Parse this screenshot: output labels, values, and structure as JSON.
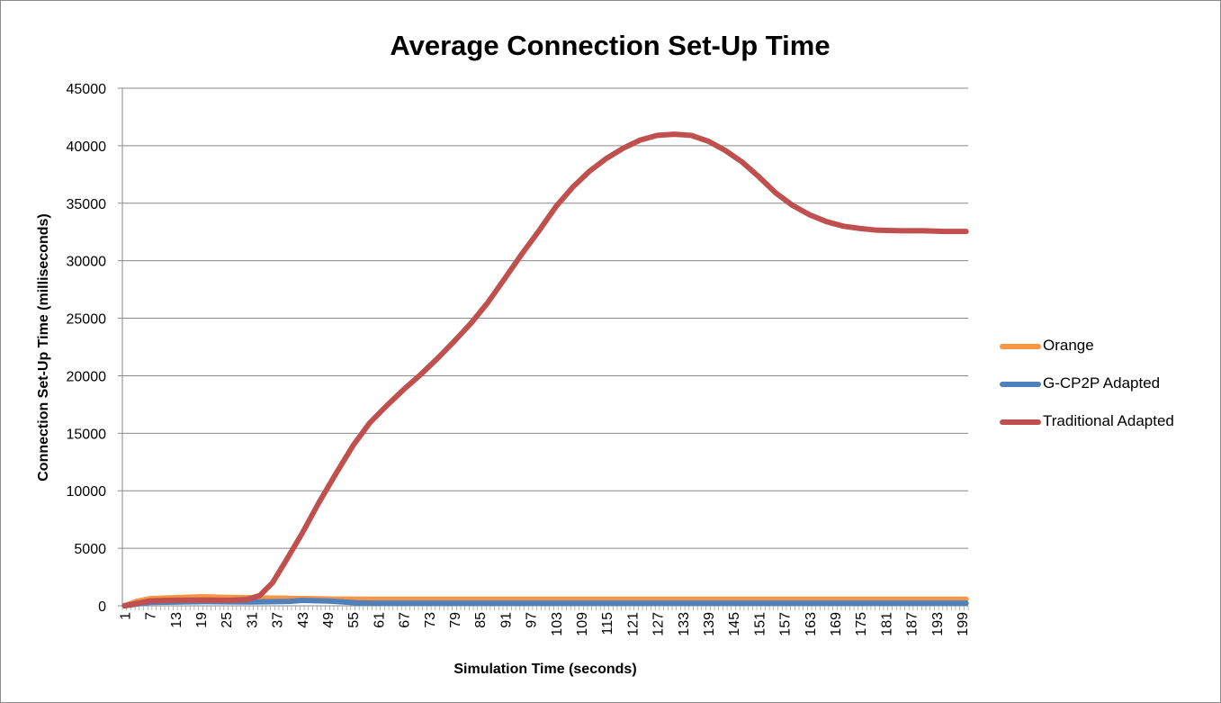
{
  "chart_data": {
    "type": "line",
    "title": "Average Connection Set-Up Time",
    "xlabel": "Simulation Time (seconds)",
    "ylabel": "Connection Set-Up Time (milliseconds)",
    "ylim": [
      0,
      45000
    ],
    "yticks": [
      0,
      5000,
      10000,
      15000,
      20000,
      25000,
      30000,
      35000,
      40000,
      45000
    ],
    "x_start": 1,
    "x_end": 200,
    "x_tick_labels": [
      1,
      7,
      13,
      19,
      25,
      31,
      37,
      43,
      49,
      55,
      61,
      67,
      73,
      79,
      85,
      91,
      97,
      103,
      109,
      115,
      121,
      127,
      133,
      139,
      145,
      151,
      157,
      163,
      169,
      175,
      181,
      187,
      193,
      199
    ],
    "grid": true,
    "legend_position": "right",
    "series": [
      {
        "name": "Orange",
        "color": "#f79646",
        "points": [
          [
            1,
            0
          ],
          [
            4,
            400
          ],
          [
            7,
            620
          ],
          [
            12,
            700
          ],
          [
            19,
            780
          ],
          [
            26,
            720
          ],
          [
            31,
            700
          ],
          [
            40,
            640
          ],
          [
            50,
            590
          ],
          [
            60,
            560
          ],
          [
            80,
            560
          ],
          [
            120,
            560
          ],
          [
            160,
            560
          ],
          [
            200,
            560
          ]
        ]
      },
      {
        "name": "G-CP2P Adapted",
        "color": "#4f81bd",
        "points": [
          [
            1,
            0
          ],
          [
            7,
            300
          ],
          [
            20,
            360
          ],
          [
            31,
            330
          ],
          [
            40,
            380
          ],
          [
            43,
            470
          ],
          [
            50,
            400
          ],
          [
            56,
            250
          ],
          [
            60,
            230
          ],
          [
            100,
            230
          ],
          [
            150,
            230
          ],
          [
            200,
            230
          ]
        ]
      },
      {
        "name": "Traditional Adapted",
        "color": "#c0504d",
        "points": [
          [
            1,
            0
          ],
          [
            7,
            420
          ],
          [
            12,
            480
          ],
          [
            20,
            500
          ],
          [
            26,
            480
          ],
          [
            30,
            550
          ],
          [
            33,
            900
          ],
          [
            36,
            2000
          ],
          [
            39,
            3800
          ],
          [
            43,
            6300
          ],
          [
            47,
            9000
          ],
          [
            51,
            11500
          ],
          [
            55,
            13900
          ],
          [
            59,
            15900
          ],
          [
            63,
            17400
          ],
          [
            67,
            18800
          ],
          [
            71,
            20100
          ],
          [
            75,
            21500
          ],
          [
            79,
            23000
          ],
          [
            83,
            24600
          ],
          [
            87,
            26400
          ],
          [
            91,
            28500
          ],
          [
            95,
            30600
          ],
          [
            99,
            32600
          ],
          [
            103,
            34700
          ],
          [
            107,
            36400
          ],
          [
            111,
            37800
          ],
          [
            115,
            38900
          ],
          [
            119,
            39800
          ],
          [
            123,
            40500
          ],
          [
            127,
            40900
          ],
          [
            131,
            41000
          ],
          [
            135,
            40900
          ],
          [
            139,
            40400
          ],
          [
            143,
            39600
          ],
          [
            147,
            38600
          ],
          [
            151,
            37300
          ],
          [
            155,
            35900
          ],
          [
            159,
            34800
          ],
          [
            163,
            34000
          ],
          [
            167,
            33400
          ],
          [
            171,
            33000
          ],
          [
            175,
            32800
          ],
          [
            179,
            32650
          ],
          [
            185,
            32600
          ],
          [
            190,
            32600
          ],
          [
            195,
            32550
          ],
          [
            200,
            32550
          ]
        ]
      }
    ]
  }
}
